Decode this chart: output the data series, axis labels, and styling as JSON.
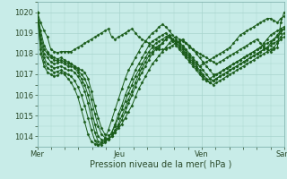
{
  "xlabel": "Pression niveau de la mer( hPa )",
  "bg_color": "#c8ece8",
  "grid_color": "#a8d4ce",
  "line_color": "#1a5c1a",
  "marker_color": "#1a5c1a",
  "ylim": [
    1013.5,
    1020.5
  ],
  "yticks": [
    1014,
    1015,
    1016,
    1017,
    1018,
    1019,
    1020
  ],
  "xtick_labels": [
    "Mer",
    "Jeu",
    "Ven",
    "Sam"
  ],
  "xtick_positions": [
    0,
    24,
    48,
    72
  ],
  "xmax": 72,
  "series": [
    [
      1020.0,
      1019.5,
      1019.1,
      1018.8,
      1018.2,
      1018.1,
      1018.05,
      1018.1,
      1018.1,
      1018.1,
      1018.1,
      1018.2,
      1018.3,
      1018.4,
      1018.5,
      1018.6,
      1018.7,
      1018.8,
      1018.9,
      1019.0,
      1019.1,
      1019.2,
      1018.8,
      1018.7,
      1018.8,
      1018.9,
      1019.0,
      1019.1,
      1019.2,
      1019.0,
      1018.8,
      1018.7,
      1018.6,
      1018.5,
      1018.4,
      1018.3,
      1018.2,
      1018.2,
      1018.2,
      1018.3,
      1018.4,
      1018.5,
      1018.6,
      1018.7,
      1018.5,
      1018.3,
      1018.2,
      1018.1,
      1018.0,
      1017.9,
      1017.8,
      1017.7,
      1017.6,
      1017.5,
      1017.6,
      1017.7,
      1017.8,
      1017.9,
      1018.0,
      1018.1,
      1018.2,
      1018.3,
      1018.4,
      1018.5,
      1018.6,
      1018.7,
      1018.5,
      1018.3,
      1018.2,
      1018.1,
      1018.2,
      1018.3,
      1019.5,
      1020.0
    ],
    [
      1020.0,
      1019.1,
      1018.4,
      1018.1,
      1017.9,
      1017.8,
      1017.75,
      1017.8,
      1017.7,
      1017.6,
      1017.5,
      1017.4,
      1017.3,
      1017.2,
      1017.1,
      1016.8,
      1016.2,
      1015.5,
      1014.9,
      1014.4,
      1014.1,
      1014.05,
      1014.1,
      1014.2,
      1014.4,
      1014.6,
      1014.9,
      1015.2,
      1015.5,
      1015.9,
      1016.3,
      1016.6,
      1016.9,
      1017.2,
      1017.5,
      1017.7,
      1017.9,
      1018.1,
      1018.3,
      1018.5,
      1018.7,
      1018.8,
      1018.7,
      1018.6,
      1018.5,
      1018.4,
      1018.2,
      1018.0,
      1017.8,
      1017.6,
      1017.4,
      1017.2,
      1017.0,
      1017.0,
      1017.1,
      1017.2,
      1017.3,
      1017.4,
      1017.5,
      1017.6,
      1017.7,
      1017.8,
      1017.9,
      1018.0,
      1018.1,
      1018.2,
      1018.3,
      1018.4,
      1018.5,
      1018.6,
      1018.7,
      1018.8,
      1019.0,
      1019.2
    ],
    [
      1020.0,
      1018.9,
      1018.2,
      1018.0,
      1017.8,
      1017.7,
      1017.65,
      1017.7,
      1017.6,
      1017.5,
      1017.5,
      1017.4,
      1017.2,
      1017.0,
      1016.8,
      1016.4,
      1015.8,
      1015.1,
      1014.5,
      1014.1,
      1013.95,
      1013.9,
      1014.0,
      1014.2,
      1014.5,
      1014.8,
      1015.2,
      1015.6,
      1016.0,
      1016.4,
      1016.8,
      1017.1,
      1017.4,
      1017.7,
      1018.0,
      1018.2,
      1018.3,
      1018.5,
      1018.7,
      1018.8,
      1018.7,
      1018.6,
      1018.5,
      1018.4,
      1018.2,
      1018.0,
      1017.8,
      1017.6,
      1017.4,
      1017.2,
      1017.0,
      1016.8,
      1016.7,
      1016.8,
      1016.9,
      1017.0,
      1017.1,
      1017.2,
      1017.3,
      1017.4,
      1017.5,
      1017.6,
      1017.7,
      1017.8,
      1017.9,
      1018.0,
      1018.1,
      1018.2,
      1018.3,
      1018.4,
      1018.5,
      1018.6,
      1018.8,
      1019.0
    ],
    [
      1020.0,
      1018.7,
      1018.0,
      1017.8,
      1017.6,
      1017.5,
      1017.55,
      1017.6,
      1017.5,
      1017.4,
      1017.4,
      1017.3,
      1017.1,
      1016.8,
      1016.5,
      1016.0,
      1015.3,
      1014.6,
      1014.0,
      1013.85,
      1013.8,
      1013.85,
      1014.0,
      1014.3,
      1014.6,
      1015.0,
      1015.4,
      1015.8,
      1016.2,
      1016.6,
      1017.0,
      1017.3,
      1017.6,
      1017.9,
      1018.1,
      1018.3,
      1018.4,
      1018.5,
      1018.7,
      1018.8,
      1018.7,
      1018.5,
      1018.4,
      1018.2,
      1018.0,
      1017.8,
      1017.6,
      1017.4,
      1017.2,
      1017.0,
      1016.8,
      1016.6,
      1016.5,
      1016.6,
      1016.7,
      1016.8,
      1016.9,
      1017.0,
      1017.1,
      1017.2,
      1017.3,
      1017.4,
      1017.5,
      1017.6,
      1017.7,
      1017.8,
      1017.9,
      1018.0,
      1018.1,
      1018.2,
      1018.3,
      1018.5,
      1018.7,
      1018.8
    ],
    [
      1020.0,
      1018.5,
      1017.8,
      1017.5,
      1017.4,
      1017.3,
      1017.35,
      1017.4,
      1017.3,
      1017.2,
      1017.2,
      1017.1,
      1016.9,
      1016.6,
      1016.2,
      1015.6,
      1014.9,
      1014.2,
      1013.75,
      1013.7,
      1013.75,
      1013.9,
      1014.2,
      1014.5,
      1014.9,
      1015.3,
      1015.7,
      1016.1,
      1016.5,
      1016.9,
      1017.2,
      1017.5,
      1017.8,
      1018.1,
      1018.3,
      1018.5,
      1018.6,
      1018.7,
      1018.8,
      1018.9,
      1018.7,
      1018.5,
      1018.3,
      1018.1,
      1017.9,
      1017.7,
      1017.5,
      1017.3,
      1017.1,
      1016.9,
      1016.7,
      1016.6,
      1016.7,
      1016.8,
      1016.9,
      1017.0,
      1017.1,
      1017.2,
      1017.3,
      1017.4,
      1017.5,
      1017.6,
      1017.7,
      1017.8,
      1017.9,
      1018.0,
      1018.1,
      1018.2,
      1018.3,
      1018.5,
      1018.7,
      1018.9,
      1019.1,
      1019.2
    ],
    [
      1020.0,
      1018.2,
      1017.6,
      1017.3,
      1017.2,
      1017.1,
      1017.15,
      1017.2,
      1017.1,
      1017.0,
      1016.9,
      1016.7,
      1016.4,
      1016.0,
      1015.5,
      1014.9,
      1014.3,
      1013.8,
      1013.6,
      1013.6,
      1013.7,
      1013.9,
      1014.2,
      1014.6,
      1015.1,
      1015.5,
      1016.0,
      1016.4,
      1016.8,
      1017.2,
      1017.5,
      1017.8,
      1018.1,
      1018.4,
      1018.6,
      1018.7,
      1018.8,
      1018.9,
      1019.0,
      1018.8,
      1018.6,
      1018.4,
      1018.2,
      1018.0,
      1017.8,
      1017.6,
      1017.4,
      1017.2,
      1017.0,
      1016.8,
      1016.7,
      1016.8,
      1016.9,
      1017.0,
      1017.1,
      1017.2,
      1017.3,
      1017.4,
      1017.5,
      1017.6,
      1017.7,
      1017.8,
      1017.9,
      1018.0,
      1018.1,
      1018.2,
      1018.3,
      1018.5,
      1018.7,
      1018.9,
      1019.0,
      1019.1,
      1019.2,
      1019.3
    ],
    [
      1020.0,
      1018.0,
      1017.4,
      1017.1,
      1017.0,
      1016.9,
      1016.95,
      1017.1,
      1017.0,
      1016.8,
      1016.6,
      1016.3,
      1015.9,
      1015.3,
      1014.7,
      1014.1,
      1013.75,
      1013.65,
      1013.6,
      1013.7,
      1013.9,
      1014.3,
      1014.8,
      1015.3,
      1015.8,
      1016.3,
      1016.8,
      1017.2,
      1017.5,
      1017.8,
      1018.1,
      1018.4,
      1018.6,
      1018.8,
      1019.0,
      1019.1,
      1019.3,
      1019.4,
      1019.3,
      1019.1,
      1018.9,
      1018.7,
      1018.5,
      1018.3,
      1018.1,
      1017.9,
      1017.7,
      1017.5,
      1017.4,
      1017.5,
      1017.6,
      1017.7,
      1017.8,
      1017.9,
      1018.0,
      1018.1,
      1018.2,
      1018.3,
      1018.5,
      1018.7,
      1018.9,
      1019.0,
      1019.1,
      1019.2,
      1019.3,
      1019.4,
      1019.5,
      1019.6,
      1019.7,
      1019.7,
      1019.6,
      1019.5,
      1019.7,
      1019.8
    ]
  ]
}
